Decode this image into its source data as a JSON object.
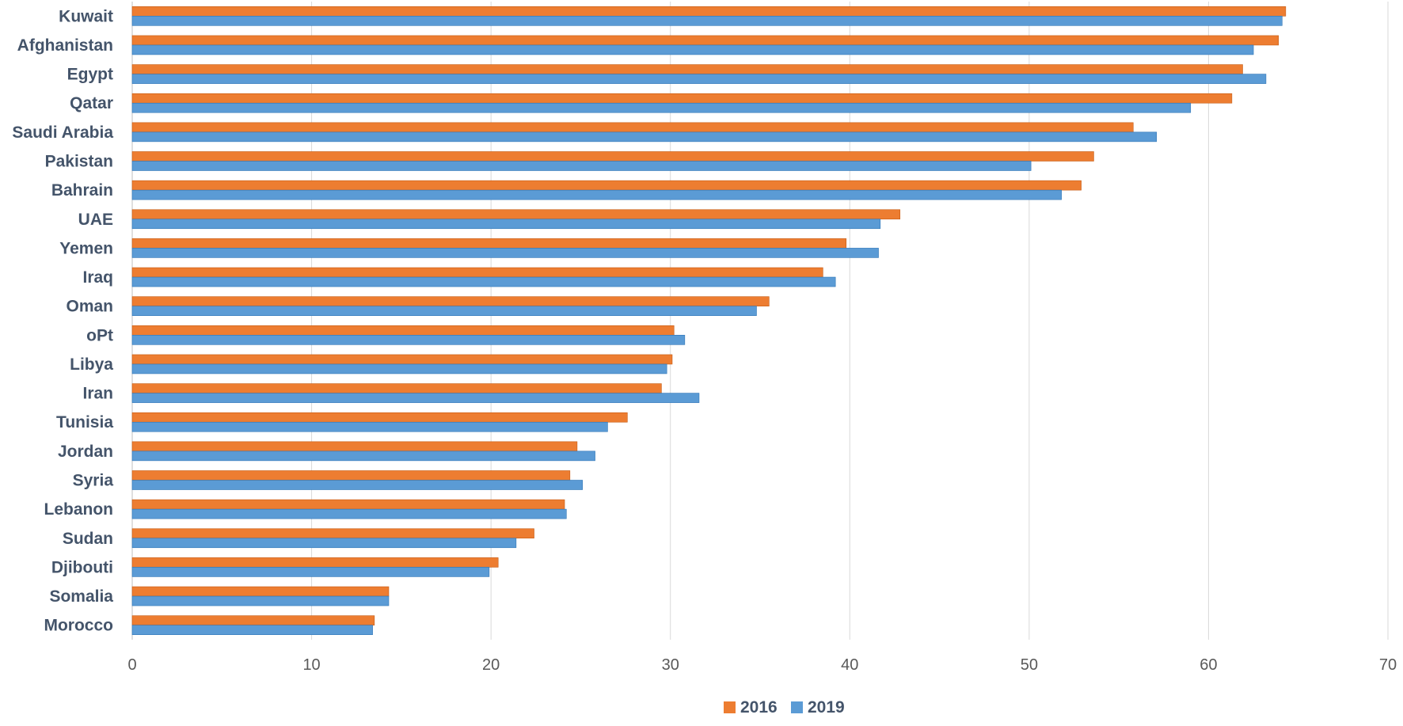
{
  "chart_data": {
    "type": "bar",
    "orientation": "horizontal",
    "categories": [
      "Kuwait",
      "Afghanistan",
      "Egypt",
      "Qatar",
      "Saudi Arabia",
      "Pakistan",
      "Bahrain",
      "UAE",
      "Yemen",
      "Iraq",
      "Oman",
      "oPt",
      "Libya",
      "Iran",
      "Tunisia",
      "Jordan",
      "Syria",
      "Lebanon",
      "Sudan",
      "Djibouti",
      "Somalia",
      "Morocco"
    ],
    "series": [
      {
        "name": "2016",
        "color": "#ed7d31",
        "values": [
          64.3,
          63.9,
          61.9,
          61.3,
          55.8,
          53.6,
          52.9,
          42.8,
          39.8,
          38.5,
          35.5,
          30.2,
          30.1,
          29.5,
          27.6,
          24.8,
          24.4,
          24.1,
          22.4,
          20.4,
          14.3,
          13.5
        ]
      },
      {
        "name": "2019",
        "color": "#5b9bd5",
        "values": [
          64.1,
          62.5,
          63.2,
          59.0,
          57.1,
          50.1,
          51.8,
          41.7,
          41.6,
          39.2,
          34.8,
          30.8,
          29.8,
          31.6,
          26.5,
          25.8,
          25.1,
          24.2,
          21.4,
          19.9,
          14.3,
          13.4
        ]
      }
    ],
    "x_ticks": [
      "0",
      "10",
      "20",
      "30",
      "40",
      "50",
      "60",
      "70"
    ],
    "xlim": [
      0,
      70
    ],
    "grid": true,
    "legend_position": "bottom",
    "title": "",
    "xlabel": "",
    "ylabel": ""
  }
}
